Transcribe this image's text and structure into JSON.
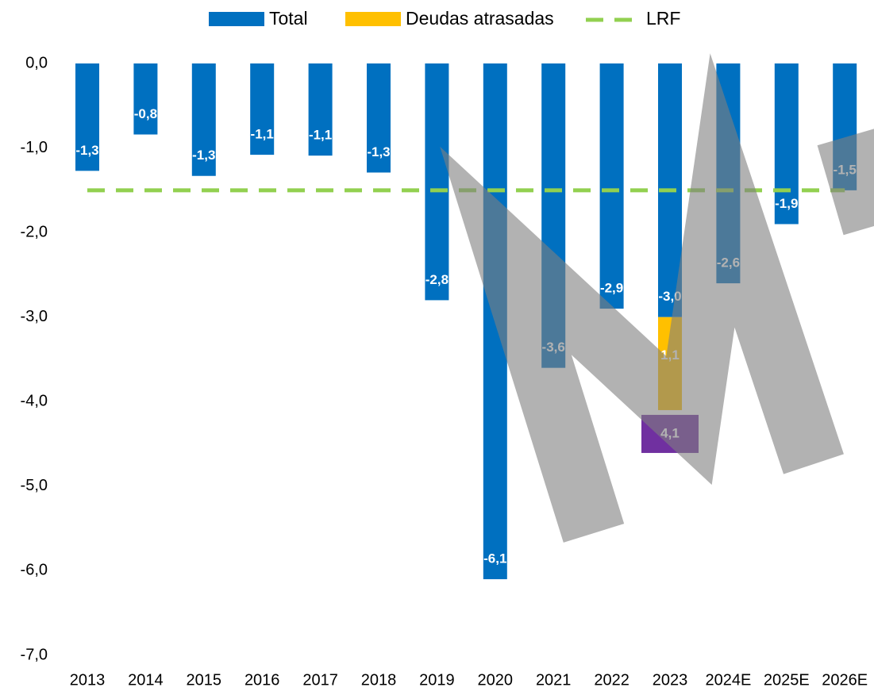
{
  "chart_data": {
    "type": "bar",
    "categories": [
      "2013",
      "2014",
      "2015",
      "2016",
      "2017",
      "2018",
      "2019",
      "2020",
      "2021",
      "2022",
      "2023",
      "2024E",
      "2025E",
      "2026E"
    ],
    "series": [
      {
        "name": "Total",
        "color": "#0070c0",
        "kind": "bar",
        "values": [
          -1.27,
          -0.84,
          -1.33,
          -1.08,
          -1.09,
          -1.29,
          -2.8,
          -6.1,
          -3.6,
          -2.9,
          -3.0,
          -2.6,
          -1.9,
          -1.5
        ],
        "value_labels": [
          "-1,3",
          "-0,8",
          "-1,3",
          "-1,1",
          "-1,1",
          "-1,3",
          "-2,8",
          "-6,1",
          "-3,6",
          "-2,9",
          "-3,0",
          "-2,6",
          "-1,9",
          "-1,5"
        ]
      },
      {
        "name": "Deudas atrasadas",
        "color": "#ffc000",
        "kind": "bar",
        "values": [
          null,
          null,
          null,
          null,
          null,
          null,
          null,
          null,
          null,
          null,
          -1.1,
          null,
          null,
          null
        ],
        "value_labels": [
          null,
          null,
          null,
          null,
          null,
          null,
          null,
          null,
          null,
          null,
          "1,1",
          null,
          null,
          null
        ]
      },
      {
        "name": "LRF",
        "color": "#92d050",
        "kind": "line",
        "dashed": true,
        "values": [
          -1.5,
          -1.5,
          -1.5,
          -1.5,
          -1.5,
          -1.5,
          -1.5,
          -1.5,
          -1.5,
          -1.5,
          -1.5,
          -1.5,
          -1.5,
          -1.5
        ]
      }
    ],
    "stacked": true,
    "annotations": [
      {
        "text": "4,1",
        "category": "2023",
        "color": "#7030a0"
      }
    ],
    "ylim": [
      -7,
      0
    ],
    "yticks": [
      {
        "value": 0,
        "label": "0,0"
      },
      {
        "value": -1,
        "label": "-1,0"
      },
      {
        "value": -2,
        "label": "-2,0"
      },
      {
        "value": -3,
        "label": "-3,0"
      },
      {
        "value": -4,
        "label": "-4,0"
      },
      {
        "value": -5,
        "label": "-5,0"
      },
      {
        "value": -6,
        "label": "-6,0"
      },
      {
        "value": -7,
        "label": "-7,0"
      }
    ],
    "grid": false,
    "legend": "top"
  }
}
